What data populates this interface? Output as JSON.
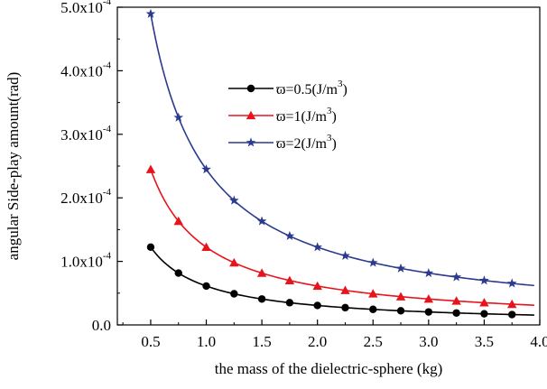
{
  "chart_data": {
    "type": "line",
    "xlabel": "the mass of the dielectric-sphere  (kg)",
    "ylabel": "angular Side-play amount(rad)",
    "xlim": [
      0.2,
      4.0
    ],
    "ylim": [
      0.0,
      0.0005
    ],
    "x_ticks": [
      0.5,
      1.0,
      1.5,
      2.0,
      2.5,
      3.0,
      3.5,
      4.0
    ],
    "x_tick_labels": [
      "0.5",
      "1.0",
      "1.5",
      "2.0",
      "2.5",
      "3.0",
      "3.5",
      "4.0"
    ],
    "y_ticks": [
      0.0,
      0.0001,
      0.0002,
      0.0003,
      0.0004,
      0.0005
    ],
    "y_tick_labels": [
      {
        "mantissa": "0.0",
        "exp": ""
      },
      {
        "mantissa": "1.0x10",
        "exp": "-4"
      },
      {
        "mantissa": "2.0x10",
        "exp": "-4"
      },
      {
        "mantissa": "3.0x10",
        "exp": "-4"
      },
      {
        "mantissa": "4.0x10",
        "exp": "-4"
      },
      {
        "mantissa": "5.0x10",
        "exp": "-4"
      }
    ],
    "grid": false,
    "legend_position": "upper-center",
    "x": [
      0.5,
      0.75,
      1.0,
      1.25,
      1.5,
      1.75,
      2.0,
      2.25,
      2.5,
      2.75,
      3.0,
      3.25,
      3.5,
      3.75
    ],
    "curve_x_end": 3.95,
    "series": [
      {
        "name_main": "ϖ=0.5(J/m",
        "name_sup": "3",
        "name_tail": ")",
        "color": "#000000",
        "marker": "circle",
        "k": 6.12e-05,
        "values": [
          0.0001224,
          8.16e-05,
          6.12e-05,
          4.9e-05,
          4.08e-05,
          3.5e-05,
          3.06e-05,
          2.72e-05,
          2.45e-05,
          2.23e-05,
          2.04e-05,
          1.88e-05,
          1.75e-05,
          1.63e-05
        ]
      },
      {
        "name_main": "ϖ=1(J/m",
        "name_sup": "3",
        "name_tail": ")",
        "color": "#e8141b",
        "marker": "triangle",
        "k": 0.0001224,
        "values": [
          0.0002448,
          0.0001632,
          0.0001224,
          9.79e-05,
          8.16e-05,
          6.99e-05,
          6.12e-05,
          5.44e-05,
          4.9e-05,
          4.45e-05,
          4.08e-05,
          3.77e-05,
          3.5e-05,
          3.26e-05
        ]
      },
      {
        "name_main": "ϖ=2(J/m",
        "name_sup": "3",
        "name_tail": ")",
        "color": "#2b3a8f",
        "marker": "star",
        "k": 0.0002448,
        "values": [
          0.0004896,
          0.0003264,
          0.0002448,
          0.0001958,
          0.0001632,
          0.0001399,
          0.0001224,
          0.0001088,
          9.79e-05,
          8.9e-05,
          8.16e-05,
          7.53e-05,
          6.99e-05,
          6.53e-05
        ]
      }
    ]
  }
}
